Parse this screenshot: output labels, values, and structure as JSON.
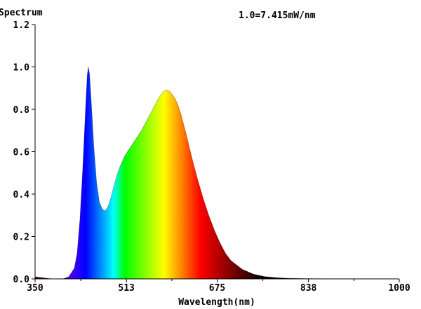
{
  "chart_data": {
    "type": "area",
    "title": "Spectrum",
    "annotation": "1.0=7.415mW/nm",
    "xlabel": "Wavelength(nm)",
    "ylabel": "",
    "xlim": [
      350,
      1000
    ],
    "ylim": [
      0,
      1.2
    ],
    "xticks": [
      350,
      513,
      675,
      838,
      1000
    ],
    "xtick_labels": [
      "350",
      "513",
      "675",
      "838",
      "1000"
    ],
    "yticks": [
      0,
      0.2,
      0.4,
      0.6,
      0.8,
      1.0,
      1.2
    ],
    "ytick_labels": [
      "0.0",
      "0.2",
      "0.4",
      "0.6",
      "0.8",
      "1.0",
      "1.2"
    ],
    "grid": false,
    "fill": "rainbow by wavelength",
    "series": [
      {
        "x": [
          350,
          380,
          400,
          410,
          420,
          425,
          430,
          435,
          440,
          443,
          445,
          447,
          450,
          455,
          460,
          465,
          470,
          475,
          480,
          485,
          490,
          495,
          500,
          505,
          510,
          515,
          520,
          530,
          540,
          550,
          560,
          570,
          575,
          580,
          585,
          590,
          595,
          600,
          605,
          610,
          615,
          620,
          630,
          640,
          650,
          660,
          670,
          680,
          690,
          700,
          720,
          740,
          760,
          780,
          800,
          850,
          900,
          1000
        ],
        "values": [
          0.01,
          0.0,
          0.0,
          0.01,
          0.05,
          0.12,
          0.28,
          0.52,
          0.8,
          0.96,
          1.0,
          0.97,
          0.85,
          0.62,
          0.45,
          0.36,
          0.33,
          0.32,
          0.34,
          0.38,
          0.43,
          0.48,
          0.52,
          0.55,
          0.58,
          0.6,
          0.62,
          0.66,
          0.7,
          0.75,
          0.8,
          0.85,
          0.87,
          0.885,
          0.89,
          0.885,
          0.87,
          0.85,
          0.82,
          0.78,
          0.73,
          0.68,
          0.57,
          0.47,
          0.38,
          0.3,
          0.23,
          0.17,
          0.12,
          0.085,
          0.045,
          0.022,
          0.011,
          0.006,
          0.003,
          0.001,
          0.0,
          0.0
        ]
      }
    ]
  }
}
